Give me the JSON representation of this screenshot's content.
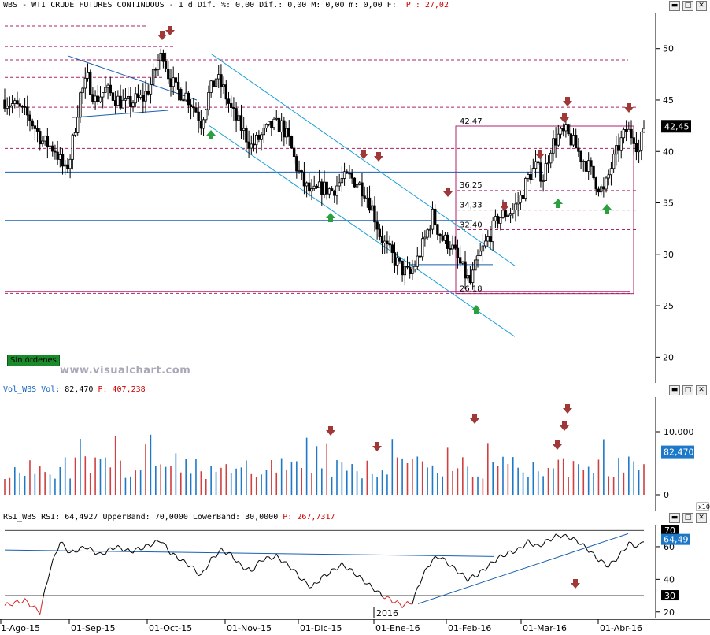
{
  "main_panel": {
    "header": {
      "symbol": "WBS",
      "name": "WTI CRUDE FUTURES CONTINUOUS",
      "period": "1 d",
      "dif_label": "Dif. %: 0,00 Dif.: 0,00 M: 0,00 m: 0,00 F:",
      "price_label": "P : 27,02"
    },
    "badge": "Sin órdenes",
    "watermark": "www.visualchart.com",
    "last_price_tag": "42,45",
    "level_labels": [
      "42,47",
      "36,25",
      "34,33",
      "32,40",
      "26,18"
    ]
  },
  "volume_panel": {
    "header": {
      "title": "Vol_WBS Vol:",
      "value": "82,470",
      "p_label": "P: 407,238"
    },
    "last_value_tag": "82,470",
    "multiplier": "x10"
  },
  "rsi_panel": {
    "header": {
      "title": "RSI_WBS RSI:",
      "value": "64,4927",
      "bands": "UpperBand: 70,0000 LowerBand: 30,0000",
      "p_label": "P: 267,7317"
    },
    "last_value_tag": "64,49",
    "upper_tag": "70",
    "lower_tag": "30"
  },
  "x_axis": {
    "labels": [
      "1-Ago-15",
      "01-Sep-15",
      "01-Oct-15",
      "01-Nov-15",
      "01-Dic-15",
      "01-Ene-16",
      "01-Feb-16",
      "01-Mar-16",
      "01-Abr-16"
    ],
    "year_label": "2016"
  },
  "colors": {
    "bull": "#000000",
    "bear": "#000000",
    "vol_blue": "#1e78c8",
    "vol_red": "#d04040",
    "channel": "#1aa0d8",
    "trendline": "#1860b0",
    "resistance_dash": "#b0206a",
    "rsi_line": "#000000",
    "arrow_down": "#a03838",
    "arrow_up": "#2aa040"
  },
  "chart_data": [
    {
      "type": "candlestick",
      "title": "WTI CRUDE FUTURES CONTINUOUS",
      "y_ticks": [
        20,
        25,
        30,
        35,
        40,
        45,
        50
      ],
      "ylim": [
        17.5,
        53.5
      ],
      "levels": [
        42.47,
        36.25,
        34.33,
        32.4,
        26.18
      ],
      "close_path": [
        [
          0,
          45.0
        ],
        [
          5,
          44.3
        ],
        [
          10,
          43.2
        ],
        [
          15,
          41.0
        ],
        [
          20,
          40.2
        ],
        [
          24,
          38.0
        ],
        [
          26,
          39.5
        ],
        [
          30,
          45.5
        ],
        [
          33,
          47.0
        ],
        [
          36,
          45.0
        ],
        [
          40,
          46.0
        ],
        [
          44,
          45.2
        ],
        [
          48,
          44.5
        ],
        [
          52,
          45.0
        ],
        [
          55,
          45.2
        ],
        [
          58,
          46.5
        ],
        [
          61,
          48.8
        ],
        [
          63,
          49.5
        ],
        [
          65,
          47.5
        ],
        [
          68,
          46.0
        ],
        [
          72,
          45.5
        ],
        [
          76,
          44.0
        ],
        [
          78,
          42.8
        ],
        [
          81,
          45.5
        ],
        [
          84,
          47.2
        ],
        [
          87,
          46.0
        ],
        [
          90,
          44.0
        ],
        [
          94,
          42.3
        ],
        [
          98,
          40.5
        ],
        [
          102,
          41.5
        ],
        [
          106,
          42.5
        ],
        [
          110,
          42.5
        ],
        [
          113,
          41.0
        ],
        [
          116,
          38.5
        ],
        [
          119,
          36.8
        ],
        [
          122,
          35.8
        ],
        [
          126,
          36.5
        ],
        [
          130,
          36.2
        ],
        [
          134,
          37.2
        ],
        [
          137,
          37.5
        ],
        [
          140,
          37.0
        ],
        [
          143,
          36.2
        ],
        [
          146,
          34.5
        ],
        [
          149,
          32.0
        ],
        [
          152,
          30.5
        ],
        [
          155,
          29.5
        ],
        [
          158,
          28.5
        ],
        [
          161,
          28.0
        ],
        [
          164,
          29.5
        ],
        [
          167,
          31.5
        ],
        [
          170,
          33.8
        ],
        [
          172,
          32.5
        ],
        [
          174,
          31.5
        ],
        [
          177,
          31.0
        ],
        [
          180,
          29.5
        ],
        [
          183,
          28.0
        ],
        [
          185,
          27.2
        ],
        [
          188,
          29.5
        ],
        [
          190,
          30.5
        ],
        [
          193,
          32.0
        ],
        [
          196,
          33.5
        ],
        [
          199,
          34.0
        ],
        [
          202,
          34.3
        ],
        [
          205,
          35.5
        ],
        [
          208,
          37.5
        ],
        [
          211,
          38.5
        ],
        [
          214,
          37.5
        ],
        [
          217,
          40.5
        ],
        [
          220,
          41.5
        ],
        [
          223,
          41.8
        ],
        [
          226,
          40.8
        ],
        [
          229,
          39.5
        ],
        [
          232,
          38.5
        ],
        [
          235,
          37.0
        ],
        [
          238,
          36.0
        ],
        [
          241,
          38.5
        ],
        [
          244,
          40.5
        ],
        [
          247,
          42.0
        ],
        [
          250,
          41.5
        ],
        [
          252,
          40.0
        ],
        [
          254,
          42.45
        ]
      ]
    },
    {
      "type": "bar",
      "title": "Vol_WBS",
      "y_ticks": [
        0,
        10000
      ],
      "ylim": [
        -2500,
        15500
      ],
      "last_value": 82470,
      "x_range": [
        0,
        254
      ]
    },
    {
      "type": "line",
      "title": "RSI_WBS",
      "y_ticks": [
        20,
        30,
        40,
        60,
        70
      ],
      "ylim": [
        16.5,
        73.5
      ],
      "upper_band": 70,
      "lower_band": 30,
      "last_value": 64.49,
      "path": [
        [
          0,
          24
        ],
        [
          8,
          27
        ],
        [
          14,
          20
        ],
        [
          18,
          46
        ],
        [
          22,
          63
        ],
        [
          26,
          56
        ],
        [
          32,
          60
        ],
        [
          38,
          55
        ],
        [
          44,
          60
        ],
        [
          50,
          57
        ],
        [
          56,
          60
        ],
        [
          62,
          64
        ],
        [
          66,
          56
        ],
        [
          70,
          52
        ],
        [
          74,
          48
        ],
        [
          78,
          42
        ],
        [
          82,
          52
        ],
        [
          86,
          58
        ],
        [
          90,
          55
        ],
        [
          94,
          48
        ],
        [
          98,
          45
        ],
        [
          102,
          52
        ],
        [
          108,
          54
        ],
        [
          114,
          47
        ],
        [
          118,
          40
        ],
        [
          122,
          35
        ],
        [
          126,
          41
        ],
        [
          130,
          45
        ],
        [
          134,
          49
        ],
        [
          138,
          45
        ],
        [
          142,
          40
        ],
        [
          146,
          35
        ],
        [
          150,
          30
        ],
        [
          154,
          27
        ],
        [
          158,
          24
        ],
        [
          162,
          26
        ],
        [
          166,
          42
        ],
        [
          170,
          52
        ],
        [
          173,
          54
        ],
        [
          176,
          50
        ],
        [
          180,
          45
        ],
        [
          184,
          40
        ],
        [
          188,
          43
        ],
        [
          192,
          48
        ],
        [
          196,
          53
        ],
        [
          200,
          56
        ],
        [
          204,
          58
        ],
        [
          208,
          63
        ],
        [
          212,
          60
        ],
        [
          216,
          64
        ],
        [
          220,
          67
        ],
        [
          224,
          66
        ],
        [
          228,
          63
        ],
        [
          232,
          58
        ],
        [
          236,
          52
        ],
        [
          240,
          48
        ],
        [
          244,
          54
        ],
        [
          248,
          62
        ],
        [
          252,
          60
        ],
        [
          254,
          64.49
        ]
      ]
    }
  ]
}
